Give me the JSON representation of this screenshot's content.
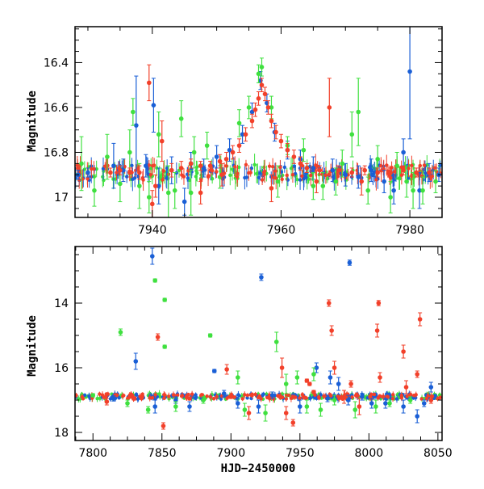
{
  "colors": {
    "blue": "#1a5fd6",
    "green": "#3fe03f",
    "red": "#f2402a",
    "frame": "#000000"
  },
  "chart_data": [
    {
      "type": "scatter",
      "panel": "top",
      "xlabel": "",
      "ylabel": "Magnitude",
      "xlim": [
        7928,
        7985
      ],
      "ylim": [
        16.24,
        17.09
      ],
      "y_inverted": true,
      "x_ticks": [
        7940,
        7960,
        7980
      ],
      "y_ticks": [
        16.4,
        16.6,
        16.8,
        17
      ],
      "y_tick_labels": [
        "16.4",
        "16.6",
        "16.8",
        "17"
      ],
      "error_bars": true,
      "baseline_magnitude": 16.89,
      "series": [
        {
          "color": "blue",
          "points": [
            [
              7928.5,
              16.9,
              0.02
            ],
            [
              7930,
              16.89,
              0.02
            ],
            [
              7934,
              16.86,
              0.1
            ],
            [
              7935.5,
              16.88,
              0.05
            ],
            [
              7937.5,
              16.68,
              0.22
            ],
            [
              7939,
              16.86,
              0.05
            ],
            [
              7940.2,
              16.59,
              0.12
            ],
            [
              7941,
              16.95,
              0.08
            ],
            [
              7943,
              16.88,
              0.06
            ],
            [
              7945,
              17.02,
              0.06
            ],
            [
              7946,
              16.85,
              0.05
            ],
            [
              7948,
              16.87,
              0.04
            ],
            [
              7950,
              16.82,
              0.05
            ],
            [
              7952,
              16.79,
              0.05
            ],
            [
              7954,
              16.72,
              0.04
            ],
            [
              7955.5,
              16.62,
              0.04
            ],
            [
              7956.8,
              16.48,
              0.04
            ],
            [
              7957.8,
              16.58,
              0.04
            ],
            [
              7959,
              16.71,
              0.04
            ],
            [
              7961,
              16.79,
              0.04
            ],
            [
              7963,
              16.83,
              0.04
            ],
            [
              7965,
              16.87,
              0.05
            ],
            [
              7968,
              16.88,
              0.05
            ],
            [
              7970,
              16.9,
              0.05
            ],
            [
              7972,
              16.91,
              0.05
            ],
            [
              7974,
              16.88,
              0.05
            ],
            [
              7976,
              16.93,
              0.05
            ],
            [
              7977.5,
              16.97,
              0.06
            ],
            [
              7979,
              16.8,
              0.06
            ],
            [
              7980,
              16.44,
              0.3
            ],
            [
              7981.5,
              16.97,
              0.08
            ],
            [
              7983,
              16.89,
              0.04
            ],
            [
              7984.5,
              16.9,
              0.03
            ]
          ]
        },
        {
          "color": "green",
          "points": [
            [
              7929,
              16.85,
              0.12
            ],
            [
              7931,
              16.97,
              0.07
            ],
            [
              7933,
              16.82,
              0.1
            ],
            [
              7935,
              16.94,
              0.08
            ],
            [
              7936.5,
              16.8,
              0.1
            ],
            [
              7937,
              16.62,
              0.06
            ],
            [
              7938,
              16.95,
              0.1
            ],
            [
              7939.5,
              17.0,
              0.07
            ],
            [
              7941,
              16.72,
              0.1
            ],
            [
              7942.5,
              16.98,
              0.12
            ],
            [
              7943.5,
              16.97,
              0.08
            ],
            [
              7944.5,
              16.65,
              0.08
            ],
            [
              7946,
              16.98,
              0.1
            ],
            [
              7946.5,
              16.8,
              0.07
            ],
            [
              7948.5,
              16.77,
              0.06
            ],
            [
              7950.5,
              16.91,
              0.05
            ],
            [
              7953.5,
              16.67,
              0.06
            ],
            [
              7955,
              16.6,
              0.05
            ],
            [
              7956.5,
              16.45,
              0.04
            ],
            [
              7957,
              16.42,
              0.04
            ],
            [
              7958.5,
              16.6,
              0.05
            ],
            [
              7959.5,
              16.93,
              0.07
            ],
            [
              7961,
              16.77,
              0.04
            ],
            [
              7963.5,
              16.79,
              0.05
            ],
            [
              7965,
              16.95,
              0.06
            ],
            [
              7966.5,
              16.95,
              0.06
            ],
            [
              7968.5,
              16.93,
              0.06
            ],
            [
              7969.5,
              16.85,
              0.06
            ],
            [
              7971,
              16.72,
              0.1
            ],
            [
              7972,
              16.62,
              0.15
            ],
            [
              7973.5,
              16.97,
              0.06
            ],
            [
              7975,
              16.83,
              0.06
            ],
            [
              7977,
              17.0,
              0.07
            ],
            [
              7978,
              16.86,
              0.06
            ],
            [
              7979.5,
              16.93,
              0.07
            ],
            [
              7980.5,
              16.97,
              0.08
            ],
            [
              7982,
              16.97,
              0.06
            ],
            [
              7984,
              16.93,
              0.05
            ]
          ]
        },
        {
          "color": "red",
          "points": [
            [
              7933.5,
              16.89,
              0.02
            ],
            [
              7935,
              16.88,
              0.02
            ],
            [
              7936.5,
              16.89,
              0.02
            ],
            [
              7938,
              16.89,
              0.03
            ],
            [
              7939.5,
              16.49,
              0.08
            ],
            [
              7940.5,
              16.95,
              0.05
            ],
            [
              7941.5,
              16.75,
              0.09
            ],
            [
              7943,
              16.88,
              0.03
            ],
            [
              7944.5,
              16.87,
              0.03
            ],
            [
              7946,
              16.85,
              0.02
            ],
            [
              7947.5,
              16.86,
              0.02
            ],
            [
              7949,
              16.86,
              0.02
            ],
            [
              7950.5,
              16.84,
              0.03
            ],
            [
              7951.5,
              16.83,
              0.03
            ],
            [
              7952.5,
              16.8,
              0.03
            ],
            [
              7953.5,
              16.77,
              0.03
            ],
            [
              7954.5,
              16.72,
              0.03
            ],
            [
              7955.5,
              16.66,
              0.03
            ],
            [
              7956,
              16.61,
              0.03
            ],
            [
              7956.5,
              16.56,
              0.03
            ],
            [
              7957,
              16.5,
              0.03
            ],
            [
              7957.5,
              16.54,
              0.03
            ],
            [
              7958,
              16.6,
              0.03
            ],
            [
              7958.5,
              16.66,
              0.03
            ],
            [
              7959.2,
              16.71,
              0.03
            ],
            [
              7960,
              16.75,
              0.03
            ],
            [
              7961,
              16.79,
              0.03
            ],
            [
              7962,
              16.82,
              0.03
            ],
            [
              7963,
              16.85,
              0.03
            ],
            [
              7964,
              16.87,
              0.02
            ],
            [
              7966,
              16.88,
              0.02
            ],
            [
              7967.5,
              16.6,
              0.13
            ],
            [
              7969,
              16.88,
              0.02
            ],
            [
              7971,
              16.89,
              0.02
            ],
            [
              7973,
              16.88,
              0.02
            ],
            [
              7975,
              16.89,
              0.02
            ],
            [
              7977,
              16.89,
              0.02
            ],
            [
              7979,
              16.88,
              0.02
            ],
            [
              7981,
              16.89,
              0.02
            ],
            [
              7983,
              16.89,
              0.02
            ],
            [
              7950.8,
              16.9,
              0.05
            ],
            [
              7958.5,
              16.96,
              0.06
            ],
            [
              7965.5,
              16.93,
              0.05
            ],
            [
              7972.5,
              16.93,
              0.06
            ],
            [
              7947.5,
              16.98,
              0.05
            ],
            [
              7940,
              17.03,
              0.06
            ]
          ]
        }
      ]
    },
    {
      "type": "scatter",
      "panel": "bottom",
      "xlabel": "HJD−2450000",
      "ylabel": "Magnitude",
      "xlim": [
        7787,
        8053
      ],
      "ylim": [
        12.25,
        18.25
      ],
      "y_inverted": true,
      "x_ticks": [
        7800,
        7850,
        7900,
        7950,
        8000,
        8050
      ],
      "y_ticks": [
        14,
        16,
        18
      ],
      "y_tick_labels": [
        "14",
        "16",
        "18"
      ],
      "error_bars": true,
      "baseline_magnitude": 16.89,
      "series": [
        {
          "color": "blue",
          "points": [
            [
              7843,
              12.55,
              0.25
            ],
            [
              7831,
              15.8,
              0.25
            ],
            [
              7888,
              16.1,
              0.05
            ],
            [
              7922,
              13.2,
              0.1
            ],
            [
              7986,
              12.75,
              0.08
            ],
            [
              7962,
              16.0,
              0.15
            ],
            [
              7972,
              16.3,
              0.2
            ],
            [
              7978,
              16.5,
              0.2
            ],
            [
              7845,
              17.2,
              0.2
            ],
            [
              7870,
              17.2,
              0.15
            ],
            [
              7905,
              17.1,
              0.15
            ],
            [
              7920,
              17.2,
              0.2
            ],
            [
              7950,
              17.2,
              0.2
            ],
            [
              7985,
              17.0,
              0.15
            ],
            [
              8002,
              17.1,
              0.15
            ],
            [
              8012,
              17.1,
              0.15
            ],
            [
              8025,
              17.2,
              0.2
            ],
            [
              8035,
              17.5,
              0.2
            ],
            [
              8045,
              16.6,
              0.15
            ],
            [
              7815,
              16.95,
              0.08
            ],
            [
              7860,
              17.0,
              0.1
            ],
            [
              7895,
              16.8,
              0.1
            ],
            [
              7930,
              16.85,
              0.1
            ],
            [
              7970,
              16.95,
              0.1
            ],
            [
              7995,
              16.9,
              0.1
            ],
            [
              8040,
              17.1,
              0.1
            ]
          ]
        },
        {
          "color": "green",
          "points": [
            [
              7845,
              13.3,
              0.05
            ],
            [
              7852,
              13.9,
              0.05
            ],
            [
              7820,
              14.9,
              0.1
            ],
            [
              7852,
              15.35,
              0.05
            ],
            [
              7885,
              15.0,
              0.05
            ],
            [
              7933,
              15.2,
              0.3
            ],
            [
              7905,
              16.3,
              0.2
            ],
            [
              7940,
              16.5,
              0.3
            ],
            [
              7948,
              16.3,
              0.2
            ],
            [
              7960,
              16.2,
              0.2
            ],
            [
              7825,
              17.1,
              0.1
            ],
            [
              7840,
              17.3,
              0.1
            ],
            [
              7860,
              17.2,
              0.15
            ],
            [
              7880,
              17.0,
              0.1
            ],
            [
              7910,
              17.3,
              0.2
            ],
            [
              7925,
              17.4,
              0.25
            ],
            [
              7955,
              17.2,
              0.2
            ],
            [
              7965,
              17.3,
              0.2
            ],
            [
              7975,
              17.0,
              0.15
            ],
            [
              7990,
              17.3,
              0.25
            ],
            [
              8005,
              17.2,
              0.2
            ],
            [
              8015,
              17.1,
              0.1
            ],
            [
              8030,
              17.0,
              0.1
            ],
            [
              7800,
              16.85,
              0.05
            ]
          ]
        },
        {
          "color": "red",
          "points": [
            [
              7847,
              15.05,
              0.1
            ],
            [
              7851,
              17.8,
              0.1
            ],
            [
              7897,
              16.05,
              0.15
            ],
            [
              7937,
              16.0,
              0.3
            ],
            [
              7971,
              14.0,
              0.1
            ],
            [
              7973,
              14.85,
              0.15
            ],
            [
              7975,
              16.0,
              0.2
            ],
            [
              7982,
              16.9,
              0.2
            ],
            [
              7987,
              16.5,
              0.1
            ],
            [
              7993,
              17.2,
              0.25
            ],
            [
              8007,
              14.0,
              0.08
            ],
            [
              8006,
              14.85,
              0.2
            ],
            [
              8008,
              16.3,
              0.15
            ],
            [
              8025,
              15.5,
              0.2
            ],
            [
              8027,
              16.6,
              0.2
            ],
            [
              8035,
              16.2,
              0.1
            ],
            [
              8037,
              14.5,
              0.2
            ],
            [
              8045,
              17.0,
              0.1
            ],
            [
              7945,
              17.7,
              0.1
            ],
            [
              7913,
              17.4,
              0.2
            ],
            [
              7940,
              17.4,
              0.2
            ],
            [
              7955,
              16.4,
              0.05
            ],
            [
              7957,
              16.5,
              0.05
            ],
            [
              7960,
              16.75,
              0.05
            ],
            [
              7810,
              17.05,
              0.1
            ],
            [
              7830,
              16.95,
              0.05
            ],
            [
              7870,
              16.95,
              0.05
            ],
            [
              7900,
              16.9,
              0.05
            ]
          ]
        }
      ]
    }
  ]
}
